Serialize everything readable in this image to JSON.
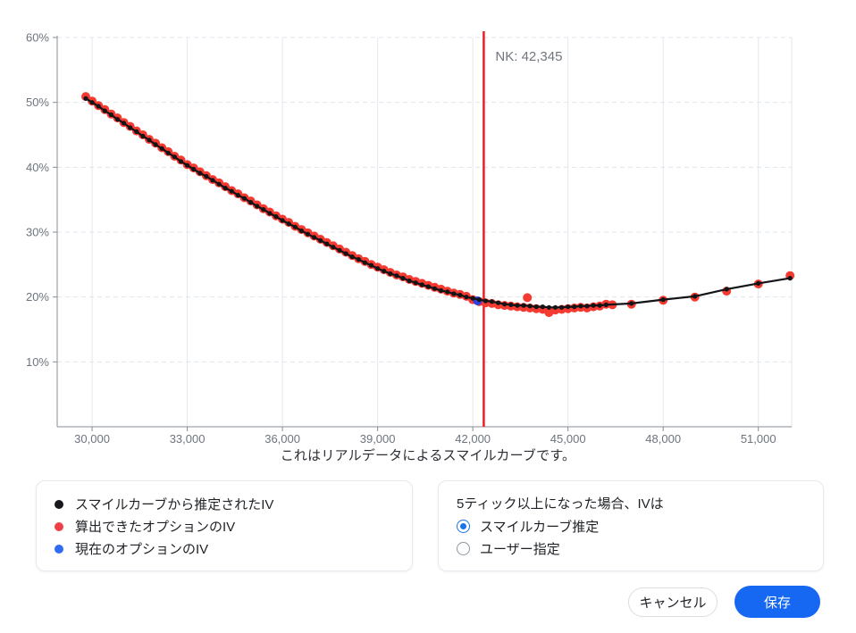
{
  "chart_data": {
    "type": "scatter",
    "title": "",
    "xlabel": "",
    "ylabel": "",
    "caption": "これはリアルデータによるスマイルカーブです。",
    "xlim": [
      28900,
      52050
    ],
    "ylim": [
      0,
      60
    ],
    "x_ticks": [
      30000,
      33000,
      36000,
      39000,
      42000,
      45000,
      48000,
      51000
    ],
    "x_tick_labels": [
      "30,000",
      "33,000",
      "36,000",
      "39,000",
      "42,000",
      "45,000",
      "48,000",
      "51,000"
    ],
    "y_ticks": [
      10,
      20,
      30,
      40,
      50,
      60
    ],
    "y_tick_labels": [
      "10%",
      "20%",
      "30%",
      "40%",
      "50%",
      "60%"
    ],
    "grid": true,
    "legend_position": "bottom-left-panel",
    "vline": {
      "x": 42345,
      "label": "NK: 42,345",
      "color": "#ee1c25",
      "label_color": "#70757d"
    },
    "series": [
      {
        "name": "算出できたオプションのIV",
        "type": "scatter",
        "color": "#f43a31",
        "point_radius": 5,
        "points": [
          [
            29800,
            50.9
          ],
          [
            30000,
            50.2
          ],
          [
            30200,
            49.5
          ],
          [
            30400,
            48.9
          ],
          [
            30600,
            48.2
          ],
          [
            30800,
            47.6
          ],
          [
            31000,
            46.9
          ],
          [
            31200,
            46.3
          ],
          [
            31400,
            45.6
          ],
          [
            31600,
            45.0
          ],
          [
            31800,
            44.3
          ],
          [
            32000,
            43.7
          ],
          [
            32200,
            43.0
          ],
          [
            32400,
            42.4
          ],
          [
            32600,
            41.7
          ],
          [
            32800,
            41.1
          ],
          [
            33000,
            40.4
          ],
          [
            33200,
            39.9
          ],
          [
            33400,
            39.3
          ],
          [
            33600,
            38.7
          ],
          [
            33800,
            38.1
          ],
          [
            34000,
            37.6
          ],
          [
            34200,
            37.0
          ],
          [
            34400,
            36.4
          ],
          [
            34600,
            35.9
          ],
          [
            34800,
            35.3
          ],
          [
            35000,
            34.8
          ],
          [
            35200,
            34.2
          ],
          [
            35400,
            33.6
          ],
          [
            35600,
            33.1
          ],
          [
            35800,
            32.5
          ],
          [
            36000,
            32.0
          ],
          [
            36200,
            31.5
          ],
          [
            36400,
            30.9
          ],
          [
            36600,
            30.4
          ],
          [
            36800,
            29.9
          ],
          [
            37000,
            29.4
          ],
          [
            37200,
            28.9
          ],
          [
            37400,
            28.4
          ],
          [
            37600,
            27.9
          ],
          [
            37800,
            27.4
          ],
          [
            38000,
            26.9
          ],
          [
            38200,
            26.4
          ],
          [
            38400,
            25.9
          ],
          [
            38600,
            25.5
          ],
          [
            38800,
            25.0
          ],
          [
            39000,
            24.6
          ],
          [
            39200,
            24.2
          ],
          [
            39400,
            23.8
          ],
          [
            39600,
            23.4
          ],
          [
            39800,
            23.1
          ],
          [
            40000,
            22.7
          ],
          [
            40200,
            22.4
          ],
          [
            40400,
            22.1
          ],
          [
            40600,
            21.8
          ],
          [
            40800,
            21.5
          ],
          [
            41000,
            21.2
          ],
          [
            41200,
            20.9
          ],
          [
            41400,
            20.6
          ],
          [
            41600,
            20.4
          ],
          [
            41800,
            20.1
          ],
          [
            42000,
            19.6
          ],
          [
            42200,
            19.3
          ],
          [
            42400,
            19.1
          ],
          [
            42600,
            19.0
          ],
          [
            42800,
            18.8
          ],
          [
            43000,
            18.7
          ],
          [
            43200,
            18.6
          ],
          [
            43400,
            18.5
          ],
          [
            43600,
            18.4
          ],
          [
            43720,
            19.9
          ],
          [
            43800,
            18.3
          ],
          [
            44000,
            18.2
          ],
          [
            44200,
            18.1
          ],
          [
            44400,
            17.6
          ],
          [
            44600,
            18.0
          ],
          [
            44800,
            18.1
          ],
          [
            45000,
            18.2
          ],
          [
            45200,
            18.3
          ],
          [
            45400,
            18.4
          ],
          [
            45600,
            18.3
          ],
          [
            45800,
            18.5
          ],
          [
            46000,
            18.6
          ],
          [
            46200,
            18.9
          ],
          [
            46400,
            18.8
          ],
          [
            47000,
            18.9
          ],
          [
            48000,
            19.5
          ],
          [
            49000,
            20.0
          ],
          [
            50000,
            20.9
          ],
          [
            51000,
            22.0
          ],
          [
            52000,
            23.3
          ]
        ]
      },
      {
        "name": "現在のオプションのIV",
        "type": "scatter",
        "color": "#2f3ede",
        "point_radius": 5,
        "points": [
          [
            42150,
            19.4
          ]
        ]
      },
      {
        "name": "スマイルカーブから推定されたIV",
        "type": "line+scatter",
        "color": "#131417",
        "line_width": 2.2,
        "point_radius": 2.6,
        "points": [
          [
            29800,
            50.6
          ],
          [
            30000,
            50.0
          ],
          [
            30200,
            49.4
          ],
          [
            30400,
            48.7
          ],
          [
            30600,
            48.1
          ],
          [
            30800,
            47.4
          ],
          [
            31000,
            46.8
          ],
          [
            31200,
            46.1
          ],
          [
            31400,
            45.5
          ],
          [
            31600,
            44.8
          ],
          [
            31800,
            44.2
          ],
          [
            32000,
            43.5
          ],
          [
            32200,
            42.9
          ],
          [
            32400,
            42.2
          ],
          [
            32600,
            41.6
          ],
          [
            32800,
            40.9
          ],
          [
            33000,
            40.3
          ],
          [
            33200,
            39.7
          ],
          [
            33400,
            39.1
          ],
          [
            33600,
            38.6
          ],
          [
            33800,
            38.0
          ],
          [
            34000,
            37.4
          ],
          [
            34200,
            36.8
          ],
          [
            34400,
            36.3
          ],
          [
            34600,
            35.7
          ],
          [
            34800,
            35.2
          ],
          [
            35000,
            34.6
          ],
          [
            35200,
            34.0
          ],
          [
            35400,
            33.5
          ],
          [
            35600,
            32.9
          ],
          [
            35800,
            32.4
          ],
          [
            36000,
            31.8
          ],
          [
            36200,
            31.3
          ],
          [
            36400,
            30.8
          ],
          [
            36600,
            30.2
          ],
          [
            36800,
            29.7
          ],
          [
            37000,
            29.2
          ],
          [
            37200,
            28.7
          ],
          [
            37400,
            28.2
          ],
          [
            37600,
            27.7
          ],
          [
            37800,
            27.2
          ],
          [
            38000,
            26.7
          ],
          [
            38200,
            26.2
          ],
          [
            38400,
            25.8
          ],
          [
            38600,
            25.3
          ],
          [
            38800,
            24.9
          ],
          [
            39000,
            24.4
          ],
          [
            39200,
            24.0
          ],
          [
            39400,
            23.6
          ],
          [
            39600,
            23.3
          ],
          [
            39800,
            22.9
          ],
          [
            40000,
            22.5
          ],
          [
            40200,
            22.2
          ],
          [
            40400,
            21.9
          ],
          [
            40600,
            21.6
          ],
          [
            40800,
            21.3
          ],
          [
            41000,
            21.0
          ],
          [
            41200,
            20.8
          ],
          [
            41400,
            20.5
          ],
          [
            41600,
            20.3
          ],
          [
            41800,
            20.0
          ],
          [
            42000,
            19.8
          ],
          [
            42200,
            19.6
          ],
          [
            42400,
            19.4
          ],
          [
            42600,
            19.3
          ],
          [
            42800,
            19.1
          ],
          [
            43000,
            18.9
          ],
          [
            43200,
            18.8
          ],
          [
            43400,
            18.7
          ],
          [
            43600,
            18.7
          ],
          [
            43800,
            18.6
          ],
          [
            44000,
            18.5
          ],
          [
            44200,
            18.5
          ],
          [
            44400,
            18.4
          ],
          [
            44600,
            18.4
          ],
          [
            44800,
            18.4
          ],
          [
            45000,
            18.5
          ],
          [
            45200,
            18.5
          ],
          [
            45400,
            18.6
          ],
          [
            45600,
            18.6
          ],
          [
            45800,
            18.7
          ],
          [
            46000,
            18.7
          ],
          [
            46200,
            18.8
          ],
          [
            47000,
            19.0
          ],
          [
            48000,
            19.6
          ],
          [
            49000,
            20.1
          ],
          [
            50000,
            21.2
          ],
          [
            51000,
            22.1
          ],
          [
            52000,
            22.9
          ]
        ]
      }
    ]
  },
  "caption": "これはリアルデータによるスマイルカーブです。",
  "legend": {
    "items": [
      {
        "label": "スマイルカーブから推定されたIV",
        "color": "#17181c"
      },
      {
        "label": "算出できたオプションのIV",
        "color": "#ef4048"
      },
      {
        "label": "現在のオプションのIV",
        "color": "#2f6cf3"
      }
    ]
  },
  "options_panel": {
    "title": "5ティック以上になった場合、IVは",
    "options": [
      {
        "label": "スマイルカーブ推定",
        "selected": true
      },
      {
        "label": "ユーザー指定",
        "selected": false
      }
    ]
  },
  "actions": {
    "cancel_label": "キャンセル",
    "save_label": "保存"
  },
  "colors": {
    "accent_blue": "#1667f2",
    "radio_blue": "#1a73e8",
    "vline_red": "#ee1c25",
    "grid_v": "#e3e8ef",
    "grid_h": "#dfe4ec",
    "axis": "#878d96",
    "tick_text": "#6d747e"
  }
}
